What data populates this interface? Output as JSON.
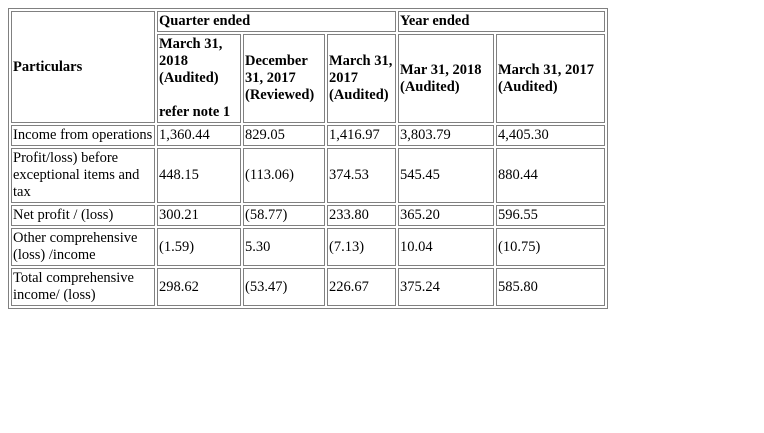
{
  "table": {
    "particulars_header": "Particulars",
    "group_headers": [
      "Quarter ended",
      "Year ended"
    ],
    "columns": [
      {
        "line1": "March 31, 2018",
        "line2": "(Audited)",
        "note": "refer note 1"
      },
      {
        "line1": "December 31, 2017",
        "line2": "(Reviewed)"
      },
      {
        "line1": "March 31, 2017",
        "line2": "(Audited)"
      },
      {
        "line1": "Mar 31, 2018",
        "line2": "(Audited)"
      },
      {
        "line1": "March 31, 2017",
        "line2": "(Audited)"
      }
    ],
    "rows": [
      {
        "label": "Income from operations",
        "values": [
          "1,360.44",
          "829.05",
          "1,416.97",
          "3,803.79",
          "4,405.30"
        ]
      },
      {
        "label": "Profit/loss) before exceptional items and tax",
        "values": [
          "448.15",
          "(113.06)",
          "374.53",
          "545.45",
          "880.44"
        ]
      },
      {
        "label": "Net profit / (loss)",
        "values": [
          "300.21",
          "(58.77)",
          "233.80",
          "365.20",
          "596.55"
        ]
      },
      {
        "label": "Other comprehensive (loss) /income",
        "values": [
          "(1.59)",
          "5.30",
          "(7.13)",
          "10.04",
          "(10.75)"
        ]
      },
      {
        "label": "Total comprehensive income/ (loss)",
        "values": [
          "298.62",
          "(53.47)",
          "226.67",
          "375.24",
          "585.80"
        ]
      }
    ]
  }
}
